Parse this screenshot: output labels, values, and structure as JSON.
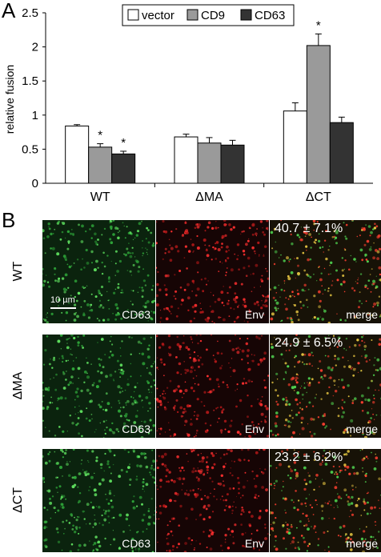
{
  "panel_a_letter": "A",
  "panel_b_letter": "B",
  "chart_data": {
    "type": "bar",
    "categories": [
      "WT",
      "ΔMA",
      "ΔCT"
    ],
    "ylabel": "relative fusion",
    "xlabel": "",
    "ylim": [
      0,
      2.5
    ],
    "yticks": [
      "0",
      "0.5",
      "1",
      "1.5",
      "2",
      "2.5"
    ],
    "legend_position": "top",
    "series": [
      {
        "name": "vector",
        "color": "#ffffff",
        "values": [
          0.84,
          0.68,
          1.06
        ],
        "errors": [
          0.02,
          0.04,
          0.12
        ],
        "significant": [
          false,
          false,
          false
        ]
      },
      {
        "name": "CD9",
        "color": "#9a9a9a",
        "values": [
          0.53,
          0.59,
          2.02
        ],
        "errors": [
          0.05,
          0.08,
          0.17
        ],
        "significant": [
          true,
          false,
          true
        ]
      },
      {
        "name": "CD63",
        "color": "#333333",
        "values": [
          0.43,
          0.56,
          0.89
        ],
        "errors": [
          0.04,
          0.07,
          0.08
        ],
        "significant": [
          true,
          false,
          false
        ]
      }
    ],
    "significance_marker": "*"
  },
  "micrographs": {
    "rows": [
      {
        "label": "WT",
        "percent": "40.7 ± 7.1%"
      },
      {
        "label": "ΔMA",
        "percent": "24.9 ± 6.5%"
      },
      {
        "label": "ΔCT",
        "percent": "23.2 ± 6.2%"
      }
    ],
    "channels": [
      "CD63",
      "Env",
      "merge"
    ],
    "scale_bar": "10 µm"
  }
}
